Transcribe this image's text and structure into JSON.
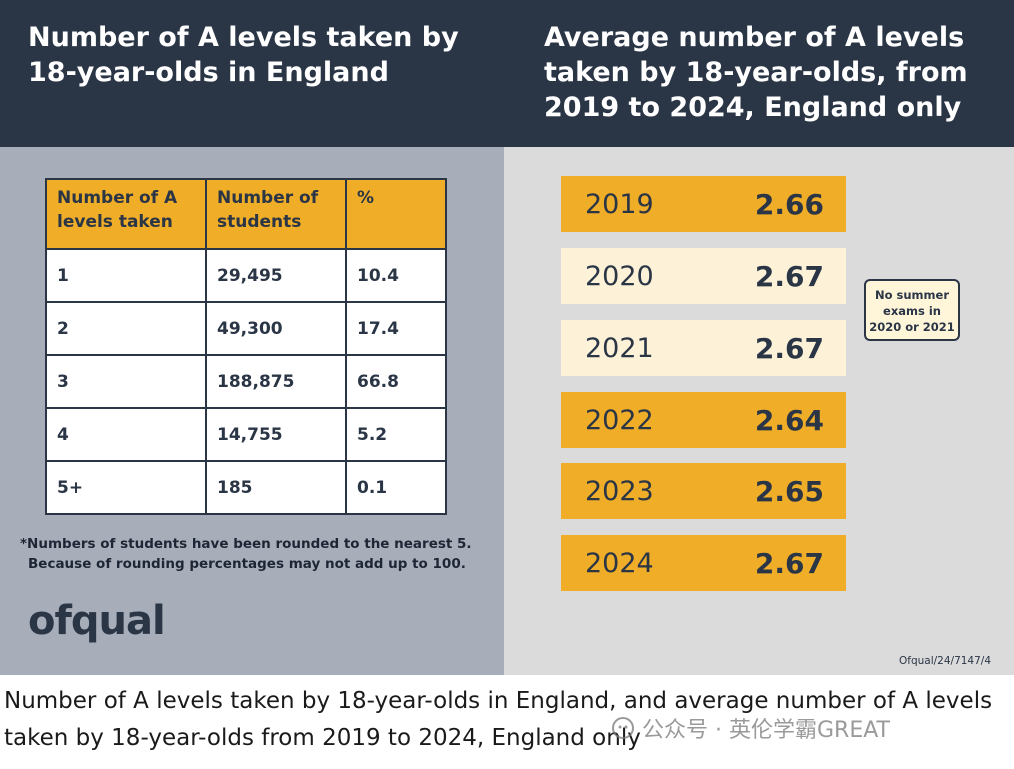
{
  "left_title": "Number of A levels taken by 18-year-olds in England",
  "right_title": "Average number of A levels taken by 18-year-olds, from 2019 to 2024, England only",
  "chart_data": [
    {
      "type": "table",
      "title": "Number of A levels taken by 18-year-olds in England",
      "columns": [
        "Number of A levels taken",
        "Number of students",
        "%"
      ],
      "rows": [
        [
          "1",
          "29,495",
          "10.4"
        ],
        [
          "2",
          "49,300",
          "17.4"
        ],
        [
          "3",
          "188,875",
          "66.8"
        ],
        [
          "4",
          "14,755",
          "5.2"
        ],
        [
          "5+",
          "185",
          "0.1"
        ]
      ]
    },
    {
      "type": "table",
      "title": "Average number of A levels taken by 18-year-olds, from 2019 to 2024, England only",
      "rows": [
        {
          "year": "2019",
          "value": "2.66",
          "highlight": true
        },
        {
          "year": "2020",
          "value": "2.67",
          "highlight": false
        },
        {
          "year": "2021",
          "value": "2.67",
          "highlight": false
        },
        {
          "year": "2022",
          "value": "2.64",
          "highlight": true
        },
        {
          "year": "2023",
          "value": "2.65",
          "highlight": true
        },
        {
          "year": "2024",
          "value": "2.67",
          "highlight": true
        }
      ],
      "annotation": "No summer exams in 2020 or 2021"
    }
  ],
  "footnote_line1": "*Numbers of students have been rounded to the nearest 5.",
  "footnote_line2": "Because of rounding percentages may not add up to 100.",
  "logo_text": "ofqual",
  "source_ref": "Ofqual/24/7147/4",
  "caption": "Number of A levels taken by 18-year-olds in England, and average number of A levels taken by 18-year-olds from 2019 to 2024, England only",
  "watermark": "公众号 · 英伦学霸GREAT",
  "colors": {
    "navy": "#2a3546",
    "orange": "#f0ad28",
    "cream": "#fdf2d7"
  }
}
